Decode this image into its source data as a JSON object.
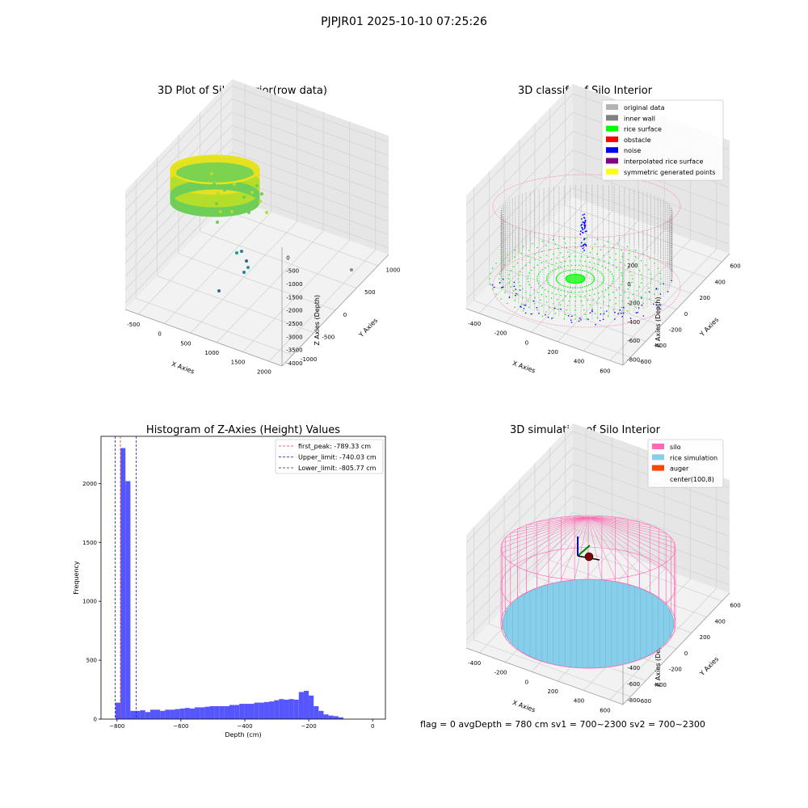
{
  "suptitle": "PJPJR01 2025-10-10 07:25:26",
  "footer": "flag = 0     avgDepth = 780 cm  sv1 = 700~2300  sv2 = 700~2300",
  "colors": {
    "hist_bar": "#4d4dff",
    "first_peak_line": "#e53935",
    "limit_lines": "#1a1ab3",
    "silo": "#ff69b4",
    "rice_simulation": "#87ceeb",
    "auger": "#ff4500",
    "inner_wall": "#808080",
    "rice_surface": "#00ff00",
    "noise": "#0000ff",
    "original_data": "#b3b3b3",
    "obstacle": "#ff0000",
    "interpolated": "#800080",
    "symmetric": "#ffff00"
  },
  "chart_data": [
    {
      "type": "scatter",
      "subtype": "3d",
      "title": "3D Plot of Silo Interior(row data)",
      "xlabel": "X Axies",
      "ylabel": "Y Axies",
      "zlabel": "Z Axies (Depth)",
      "xticks": [
        "-500",
        "0",
        "500",
        "1000",
        "1500",
        "2000"
      ],
      "yticks": [
        "-1000",
        "-500",
        "0",
        "500",
        "1000"
      ],
      "zticks": [
        "0",
        "-500",
        "-1000",
        "-1500",
        "-2000",
        "-2500",
        "-3000",
        "-3500",
        "-4000"
      ],
      "xlim": [
        -600,
        2000
      ],
      "ylim": [
        -1100,
        1100
      ],
      "zlim": [
        -4300,
        200
      ],
      "colormap": "viridis"
    },
    {
      "type": "scatter",
      "subtype": "3d",
      "title": "3D classify of Silo Interior",
      "xlabel": "X Axies",
      "ylabel": "Y Axies",
      "zlabel": "Z Axies (Depth)",
      "xticks": [
        "-400",
        "-200",
        "0",
        "200",
        "400",
        "600"
      ],
      "yticks": [
        "-600",
        "-400",
        "-200",
        "0",
        "200",
        "400",
        "600"
      ],
      "zticks": [
        "200",
        "0",
        "-200",
        "-400",
        "-600",
        "-800"
      ],
      "xlim": [
        -550,
        750
      ],
      "ylim": [
        -650,
        650
      ],
      "zlim": [
        -900,
        400
      ],
      "legend_position": "top-right",
      "legend": [
        {
          "label": "original data",
          "color": "#b3b3b3"
        },
        {
          "label": "inner wall",
          "color": "#808080"
        },
        {
          "label": "rice surface",
          "color": "#00ff00"
        },
        {
          "label": "obstacle",
          "color": "#ff0000"
        },
        {
          "label": "noise",
          "color": "#0000ff"
        },
        {
          "label": "interpolated rice surface",
          "color": "#800080"
        },
        {
          "label": "symmetric generated points",
          "color": "#ffff00"
        }
      ]
    },
    {
      "type": "bar",
      "subtype": "histogram",
      "title": "Histogram of Z-Axies (Height) Values",
      "xlabel": "Depth (cm)",
      "ylabel": "Frequency",
      "xlim": [
        -850,
        40
      ],
      "ylim": [
        0,
        2400
      ],
      "xticks": [
        -800,
        -600,
        -400,
        -200,
        0
      ],
      "yticks": [
        0,
        500,
        1000,
        1500,
        2000
      ],
      "bin_width": 15.5,
      "bin_start": -820,
      "counts": [
        0,
        140,
        2300,
        2020,
        70,
        70,
        75,
        60,
        80,
        80,
        70,
        80,
        80,
        85,
        90,
        95,
        90,
        100,
        100,
        105,
        110,
        110,
        110,
        110,
        120,
        120,
        130,
        130,
        130,
        140,
        140,
        145,
        150,
        160,
        170,
        165,
        170,
        165,
        230,
        240,
        200,
        110,
        70,
        40,
        30,
        25,
        15
      ],
      "legend_position": "top-right",
      "lines": [
        {
          "label": "first_peak: -789.33 cm",
          "x": -789.33,
          "color": "#e53935"
        },
        {
          "label": "Upper_limit: -740.03 cm",
          "x": -740.03,
          "color": "#1a1ab3"
        },
        {
          "label": "Lower_limit: -805.77 cm",
          "x": -805.77,
          "color": "#1a1ab3"
        }
      ]
    },
    {
      "type": "scatter",
      "subtype": "3d",
      "title": "3D simulation of Silo Interior",
      "xlabel": "X Axies",
      "ylabel": "Y Axies",
      "zlabel": "Z Axies (Depth)",
      "xticks": [
        "-400",
        "-200",
        "0",
        "200",
        "400",
        "600"
      ],
      "yticks": [
        "-600",
        "-400",
        "-200",
        "0",
        "200",
        "400",
        "600"
      ],
      "zticks": [
        "400",
        "200",
        "0",
        "-200",
        "-400",
        "-600",
        "-800"
      ],
      "xlim": [
        -550,
        750
      ],
      "ylim": [
        -650,
        650
      ],
      "zlim": [
        -900,
        500
      ],
      "legend_position": "top-right",
      "legend": [
        {
          "label": "silo",
          "color": "#ff69b4"
        },
        {
          "label": "rice simulation",
          "color": "#87ceeb"
        },
        {
          "label": "auger",
          "color": "#ff4500"
        },
        {
          "label": "center(100,8)",
          "color": "#ffffff"
        }
      ]
    }
  ]
}
